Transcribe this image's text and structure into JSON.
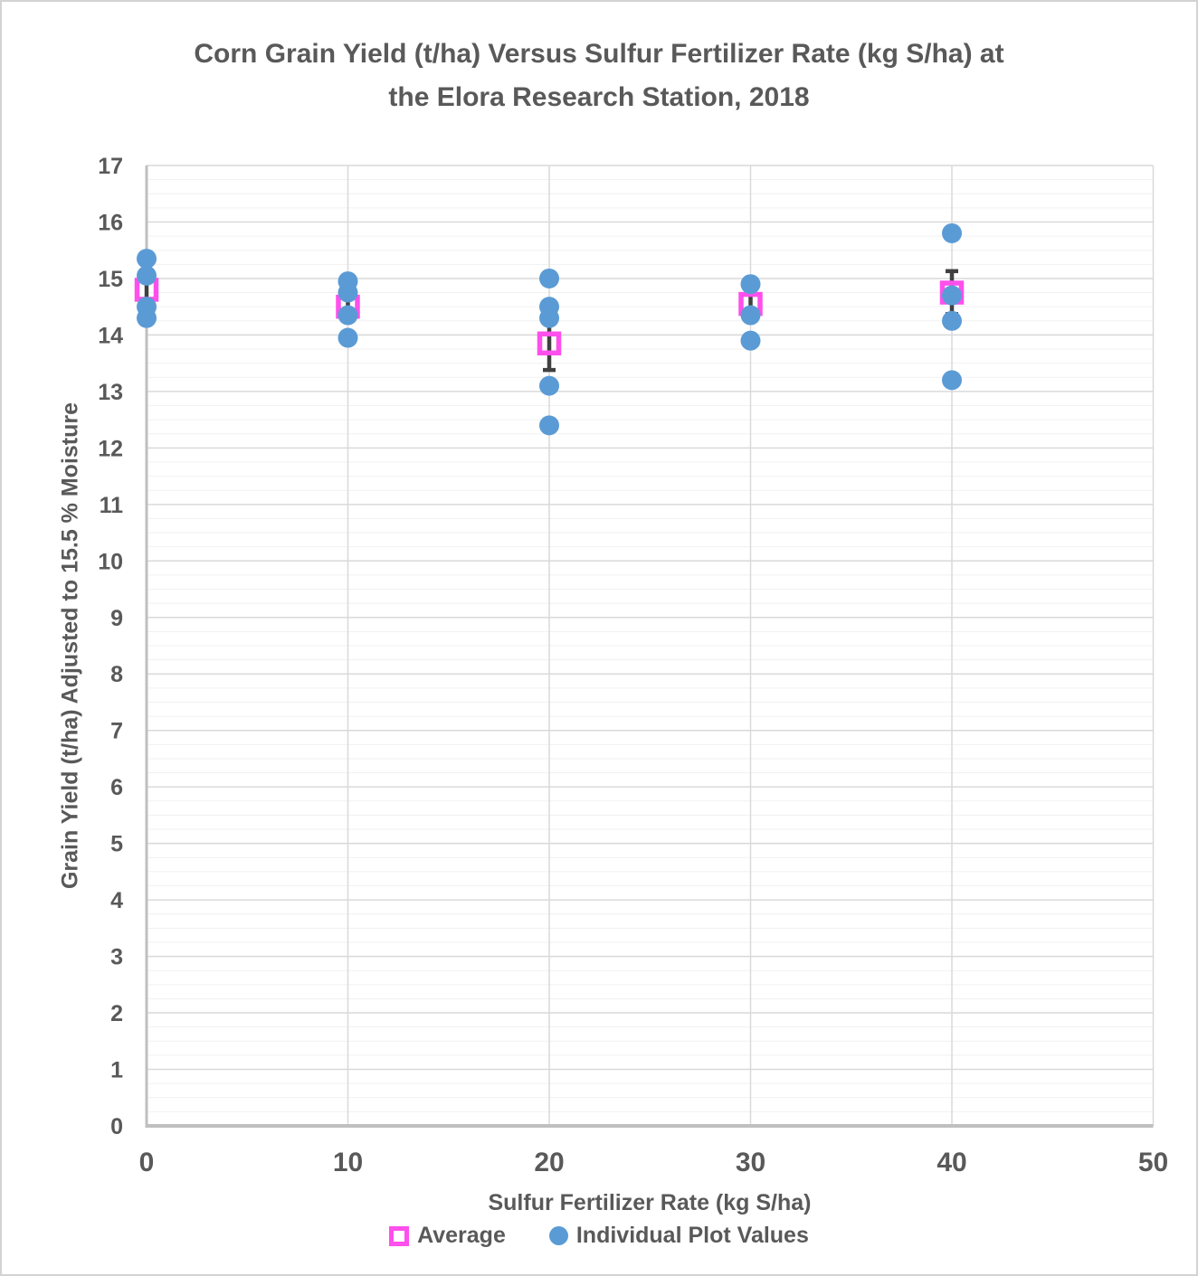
{
  "frame": {
    "background": "#FFFFFF",
    "border_color": "#D3D3D3"
  },
  "chart_data": {
    "type": "scatter",
    "title": "Corn Grain Yield (t/ha) Versus Sulfur Fertilizer Rate (kg S/ha) at the Elora Research Station, 2018",
    "title_lines": [
      "Corn Grain Yield (t/ha) Versus Sulfur Fertilizer Rate (kg S/ha) at",
      "the Elora Research Station, 2018"
    ],
    "xlabel": "Sulfur Fertilizer Rate (kg S/ha)",
    "ylabel": "Grain Yield (t/ha) Adjusted to 15.5 % Moisture",
    "xlim": [
      0,
      50
    ],
    "ylim": [
      0,
      17
    ],
    "x_ticks": [
      0,
      10,
      20,
      30,
      40,
      50
    ],
    "y_ticks": [
      0,
      1,
      2,
      3,
      4,
      5,
      6,
      7,
      8,
      9,
      10,
      11,
      12,
      13,
      14,
      15,
      16,
      17
    ],
    "y_minor_interval": 0.25,
    "grid": {
      "major_color": "#D9D9D9",
      "minor_color": "#F1F1F1",
      "axis_color": "#BFBFBF",
      "horizontal_minor": true,
      "vertical_major": true
    },
    "text_color": "#595959",
    "error_bar_color": "#404040",
    "legend": {
      "position": "bottom",
      "entries": [
        {
          "label": "Average",
          "marker": "hollow-square",
          "color": "#FF4FEC"
        },
        {
          "label": "Individual Plot Values",
          "marker": "filled-circle",
          "color": "#5B9BD5"
        }
      ]
    },
    "series": [
      {
        "name": "Average",
        "marker": "hollow-square",
        "color": "#FF4FEC",
        "points": [
          {
            "x": 0,
            "y": 14.8,
            "error": 0.25
          },
          {
            "x": 10,
            "y": 14.5,
            "error": 0.2
          },
          {
            "x": 20,
            "y": 13.85,
            "error": 0.47
          },
          {
            "x": 30,
            "y": 14.55,
            "error": 0.2
          },
          {
            "x": 40,
            "y": 14.75,
            "error": 0.38
          }
        ]
      },
      {
        "name": "Individual Plot Values",
        "marker": "filled-circle",
        "color": "#5B9BD5",
        "points": [
          {
            "x": 0,
            "y": 15.35
          },
          {
            "x": 0,
            "y": 15.05
          },
          {
            "x": 0,
            "y": 14.5
          },
          {
            "x": 0,
            "y": 14.3
          },
          {
            "x": 10,
            "y": 14.95
          },
          {
            "x": 10,
            "y": 14.75
          },
          {
            "x": 10,
            "y": 14.35
          },
          {
            "x": 10,
            "y": 13.95
          },
          {
            "x": 20,
            "y": 15.0
          },
          {
            "x": 20,
            "y": 14.5
          },
          {
            "x": 20,
            "y": 14.3
          },
          {
            "x": 20,
            "y": 13.1
          },
          {
            "x": 20,
            "y": 12.4
          },
          {
            "x": 30,
            "y": 14.9
          },
          {
            "x": 30,
            "y": 14.35
          },
          {
            "x": 30,
            "y": 13.9
          },
          {
            "x": 40,
            "y": 15.8
          },
          {
            "x": 40,
            "y": 14.7
          },
          {
            "x": 40,
            "y": 14.25
          },
          {
            "x": 40,
            "y": 13.2
          }
        ]
      }
    ]
  }
}
